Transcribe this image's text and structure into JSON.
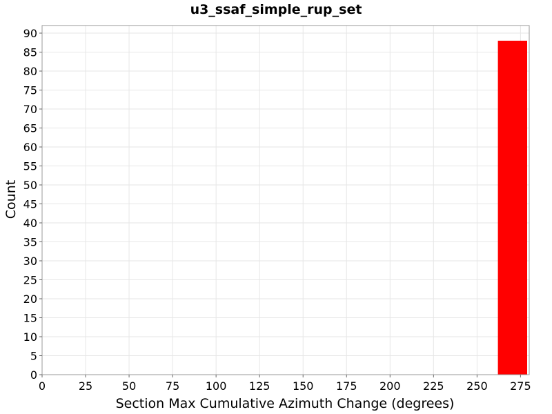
{
  "chart_data": {
    "type": "bar",
    "title": "u3_ssaf_simple_rup_set",
    "xlabel": "Section Max Cumulative Azimuth Change (degrees)",
    "ylabel": "Count",
    "xlim": [
      0,
      280
    ],
    "ylim": [
      0,
      92
    ],
    "xticks": [
      0,
      25,
      50,
      75,
      100,
      125,
      150,
      175,
      200,
      225,
      250,
      275
    ],
    "yticks": [
      0,
      5,
      10,
      15,
      20,
      25,
      30,
      35,
      40,
      45,
      50,
      55,
      60,
      65,
      70,
      75,
      80,
      85,
      90
    ],
    "grid": true,
    "bars": [
      {
        "x_start": 262,
        "x_end": 280,
        "value": 88
      }
    ],
    "bar_color": "#ff0000"
  }
}
